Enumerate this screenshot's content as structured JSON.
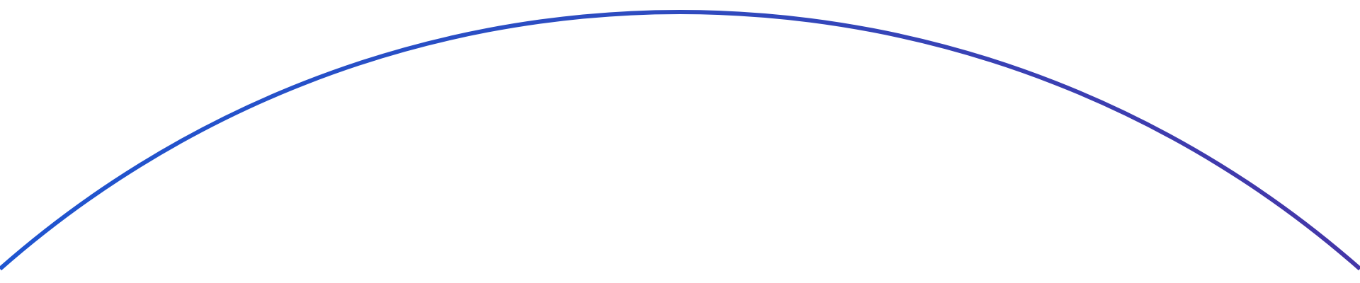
{
  "arc": {
    "gradient_start_color": "#1f55d0",
    "gradient_mid_color": "#2f4bbf",
    "gradient_end_color": "#4436a8"
  }
}
